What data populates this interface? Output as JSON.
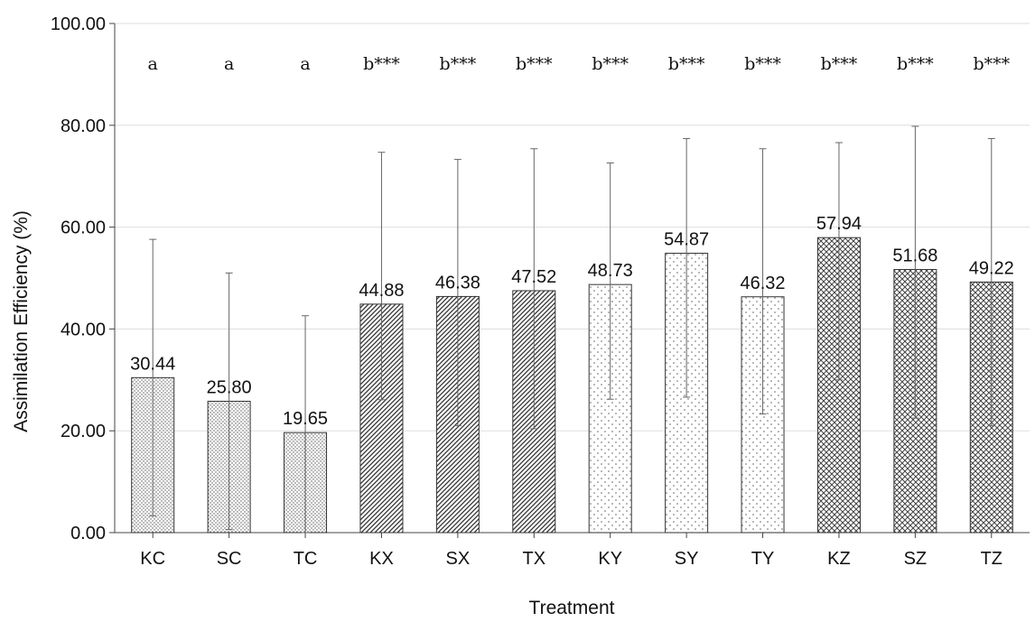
{
  "chart_data": {
    "type": "bar",
    "xlabel": "Treatment",
    "ylabel": "Assimilation Efficiency (%)",
    "ylim": [
      0,
      100
    ],
    "yticks": [
      "0.00",
      "20.00",
      "40.00",
      "60.00",
      "80.00",
      "100.00"
    ],
    "grid": "horizontal",
    "categories": [
      "KC",
      "SC",
      "TC",
      "KX",
      "SX",
      "TX",
      "KY",
      "SY",
      "TY",
      "KZ",
      "SZ",
      "TZ"
    ],
    "values": [
      30.44,
      25.8,
      19.65,
      44.88,
      46.38,
      47.52,
      48.73,
      54.87,
      46.32,
      57.94,
      51.68,
      49.22
    ],
    "value_labels": [
      "30.44",
      "25.80",
      "19.65",
      "44.88",
      "46.38",
      "47.52",
      "48.73",
      "54.87",
      "46.32",
      "57.94",
      "51.68",
      "49.22"
    ],
    "error_low": [
      3.3,
      0.6,
      0.0,
      26.1,
      21.0,
      20.4,
      26.2,
      26.6,
      23.3,
      30.0,
      22.5,
      21.0
    ],
    "error_high": [
      57.6,
      51.0,
      42.6,
      74.7,
      73.3,
      75.4,
      72.6,
      77.4,
      75.4,
      76.6,
      79.8,
      77.4
    ],
    "significance": [
      "a",
      "a",
      "a",
      "b***",
      "b***",
      "b***",
      "b***",
      "b***",
      "b***",
      "b***",
      "b***",
      "b***"
    ],
    "patterns": [
      "fine-dots",
      "fine-dots",
      "fine-dots",
      "diagonal-lines",
      "diagonal-lines",
      "diagonal-lines",
      "sparse-dots",
      "sparse-dots",
      "sparse-dots",
      "crosshatch",
      "crosshatch",
      "crosshatch"
    ],
    "colors": {
      "bar_fill": "#ffffff",
      "bar_stroke": "#333333",
      "grid": "#dddddd",
      "axis": "#444444",
      "error_bar": "#666666"
    }
  }
}
